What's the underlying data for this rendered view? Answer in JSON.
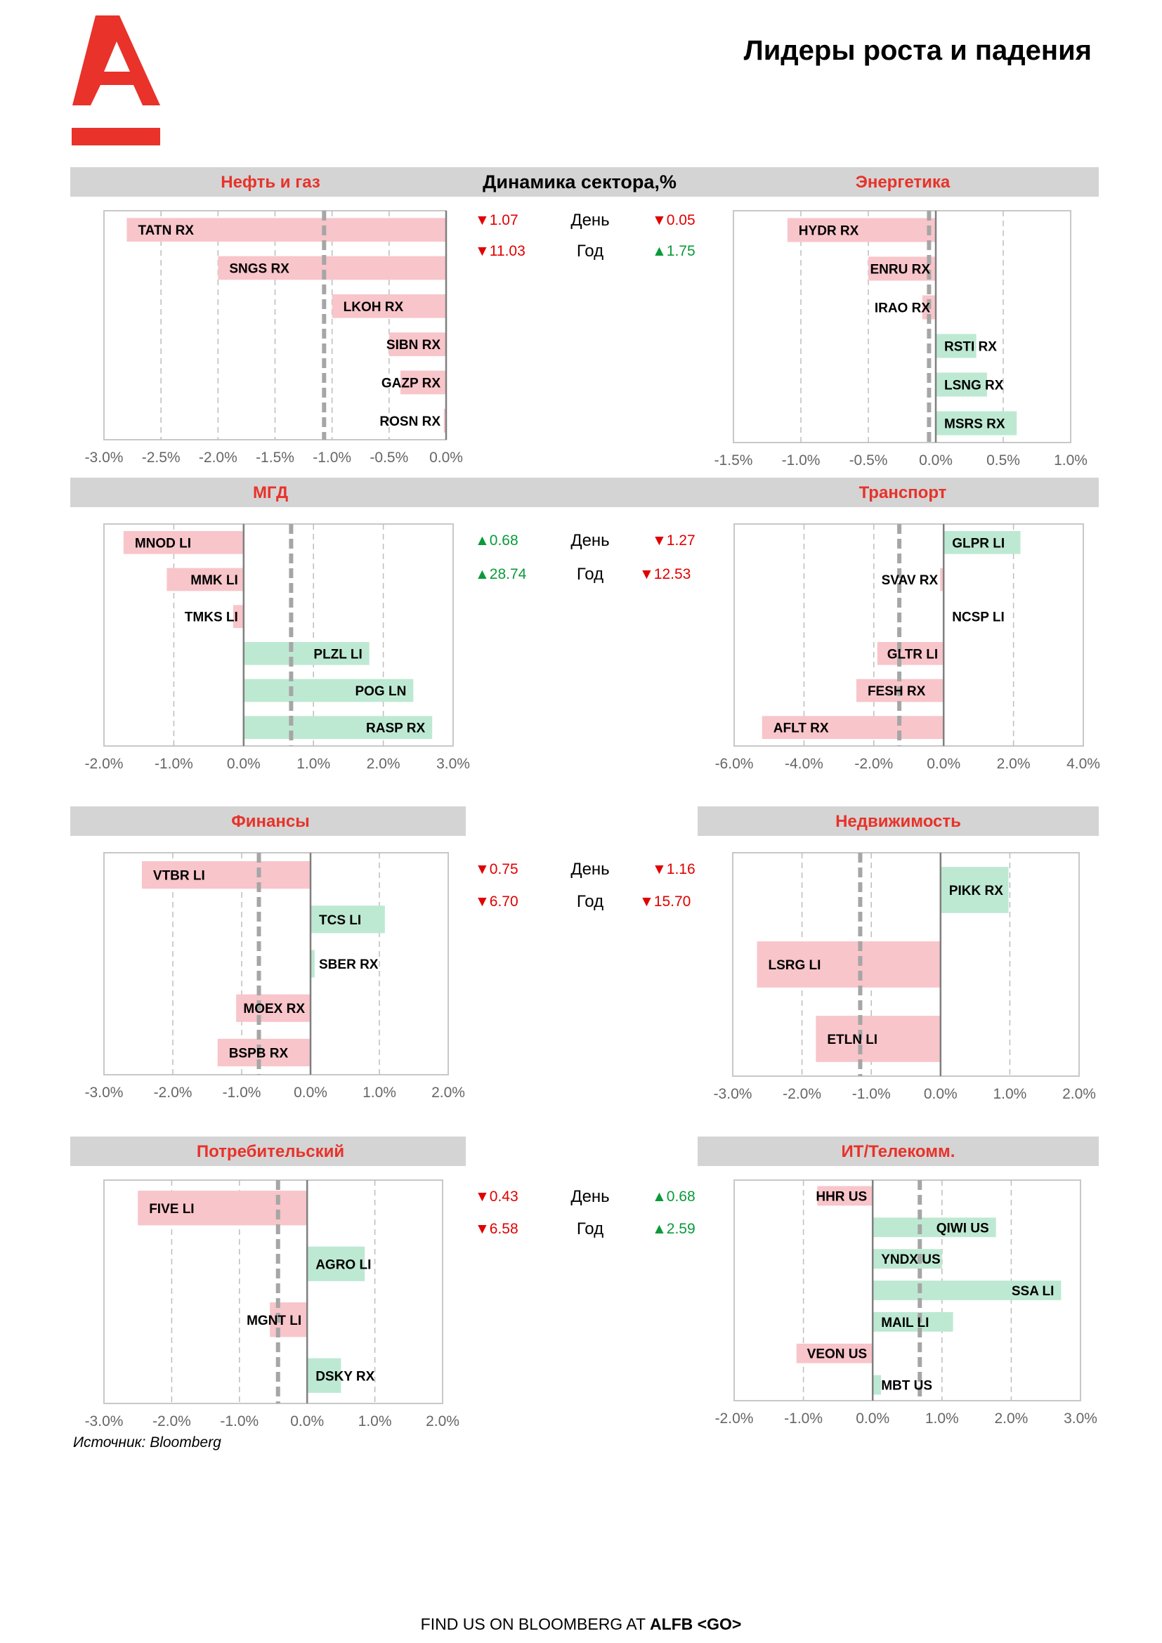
{
  "page_title": "Лидеры роста и падения",
  "center_title": "Динамика сектора,%",
  "source": "Источник: Bloomberg",
  "footer": {
    "text": "FIND US ON BLOOMBERG AT ",
    "bold": "ALFB <GO>"
  },
  "labels": {
    "day": "День",
    "year": "Год"
  },
  "colors": {
    "brand_red": "#e8322a",
    "neg_bar": "#f8c5ca",
    "pos_bar": "#bde9d3",
    "down": "#e00000",
    "up": "#0a9a3a",
    "header_bg": "#d4d4d4"
  },
  "stats": [
    {
      "left": {
        "day": "▼1.07",
        "year": "▼11.03",
        "day_dir": "down",
        "year_dir": "down"
      },
      "right": {
        "day": "▼0.05",
        "year": "▲1.75",
        "day_dir": "down",
        "year_dir": "up"
      }
    },
    {
      "left": {
        "day": "▲0.68",
        "year": "▲28.74",
        "day_dir": "up",
        "year_dir": "up"
      },
      "right": {
        "day": "▼1.27",
        "year": "▼12.53",
        "day_dir": "down",
        "year_dir": "down"
      }
    },
    {
      "left": {
        "day": "▼0.75",
        "year": "▼6.70",
        "day_dir": "down",
        "year_dir": "down"
      },
      "right": {
        "day": "▼1.16",
        "year": "▼15.70",
        "day_dir": "down",
        "year_dir": "down"
      }
    },
    {
      "left": {
        "day": "▼0.43",
        "year": "▼6.58",
        "day_dir": "down",
        "year_dir": "down"
      },
      "right": {
        "day": "▲0.68",
        "year": "▲2.59",
        "day_dir": "up",
        "year_dir": "up"
      }
    }
  ],
  "chart_data": [
    {
      "type": "bar",
      "title": "Нефть и газ",
      "orientation": "horizontal",
      "categories": [
        "TATN RX",
        "SNGS RX",
        "LKOH RX",
        "SIBN RX",
        "GAZP RX",
        "ROSN RX"
      ],
      "values": [
        -2.8,
        -2.0,
        -1.0,
        -0.5,
        -0.4,
        -0.02
      ],
      "xlim": [
        -3.0,
        0.0
      ],
      "ticks": [
        -3.0,
        -2.5,
        -2.0,
        -1.5,
        -1.0,
        -0.5,
        0.0
      ],
      "tick_labels": [
        "-3.0%",
        "-2.5%",
        "-2.0%",
        "-1.5%",
        "-1.0%",
        "-0.5%",
        "0.0%"
      ],
      "sector_change": -1.07,
      "grid": true
    },
    {
      "type": "bar",
      "title": "Энергетика",
      "orientation": "horizontal",
      "categories": [
        "HYDR RX",
        "ENRU RX",
        "IRAO RX",
        "RSTI RX",
        "LSNG RX",
        "MSRS RX"
      ],
      "values": [
        -1.1,
        -0.5,
        -0.1,
        0.3,
        0.38,
        0.6
      ],
      "xlim": [
        -1.5,
        1.0
      ],
      "ticks": [
        -1.5,
        -1.0,
        -0.5,
        0.0,
        0.5,
        1.0
      ],
      "tick_labels": [
        "-1.5%",
        "-1.0%",
        "-0.5%",
        "0.0%",
        "0.5%",
        "1.0%"
      ],
      "sector_change": -0.05,
      "grid": true
    },
    {
      "type": "bar",
      "title": "МГД",
      "orientation": "horizontal",
      "categories": [
        "MNOD LI",
        "MMK LI",
        "TMKS LI",
        "PLZL LI",
        "POG LN",
        "RASP RX"
      ],
      "values": [
        -1.72,
        -1.1,
        -0.15,
        1.8,
        2.43,
        2.7
      ],
      "xlim": [
        -2.0,
        3.0
      ],
      "ticks": [
        -2.0,
        -1.0,
        0.0,
        1.0,
        2.0,
        3.0
      ],
      "tick_labels": [
        "-2.0%",
        "-1.0%",
        "0.0%",
        "1.0%",
        "2.0%",
        "3.0%"
      ],
      "sector_change": 0.68,
      "grid": true
    },
    {
      "type": "bar",
      "title": "Транспорт",
      "orientation": "horizontal",
      "categories": [
        "GLPR LI",
        "SVAV RX",
        "NCSP LI",
        "GLTR LI",
        "FESH RX",
        "AFLT RX"
      ],
      "values": [
        2.2,
        -0.1,
        0.0,
        -1.9,
        -2.5,
        -5.2
      ],
      "xlim": [
        -6.0,
        4.0
      ],
      "ticks": [
        -6.0,
        -4.0,
        -2.0,
        0.0,
        2.0,
        4.0
      ],
      "tick_labels": [
        "-6.0%",
        "-4.0%",
        "-2.0%",
        "0.0%",
        "2.0%",
        "4.0%"
      ],
      "sector_change": -1.27,
      "grid": true
    },
    {
      "type": "bar",
      "title": "Финансы",
      "orientation": "horizontal",
      "categories": [
        "VTBR LI",
        "TCS LI",
        "SBER RX",
        "MOEX RX",
        "BSPB RX"
      ],
      "values": [
        -2.45,
        1.08,
        0.06,
        -1.08,
        -1.35
      ],
      "xlim": [
        -3.0,
        2.0
      ],
      "ticks": [
        -3.0,
        -2.0,
        -1.0,
        0.0,
        1.0,
        2.0
      ],
      "tick_labels": [
        "-3.0%",
        "-2.0%",
        "-1.0%",
        "0.0%",
        "1.0%",
        "2.0%"
      ],
      "sector_change": -0.75,
      "grid": true
    },
    {
      "type": "bar",
      "title": "Недвижимость",
      "orientation": "horizontal",
      "categories": [
        "PIKK RX",
        "LSRG LI",
        "ETLN LI"
      ],
      "values": [
        0.98,
        -2.65,
        -1.8
      ],
      "xlim": [
        -3.0,
        2.0
      ],
      "ticks": [
        -3.0,
        -2.0,
        -1.0,
        0.0,
        1.0,
        2.0
      ],
      "tick_labels": [
        "-3.0%",
        "-2.0%",
        "-1.0%",
        "0.0%",
        "1.0%",
        "2.0%"
      ],
      "sector_change": -1.16,
      "grid": true
    },
    {
      "type": "bar",
      "title": "Потребительский",
      "orientation": "horizontal",
      "categories": [
        "FIVE LI",
        "AGRO LI",
        "MGNT LI",
        "DSKY RX"
      ],
      "values": [
        -2.5,
        0.85,
        -0.55,
        0.5
      ],
      "xlim": [
        -3.0,
        2.0
      ],
      "ticks": [
        -3.0,
        -2.0,
        -1.0,
        0.0,
        1.0,
        2.0
      ],
      "tick_labels": [
        "-3.0%",
        "-2.0%",
        "-1.0%",
        "0.0%",
        "1.0%",
        "2.0%"
      ],
      "sector_change": -0.43,
      "grid": true
    },
    {
      "type": "bar",
      "title": "ИТ/Телекомм.",
      "orientation": "horizontal",
      "categories": [
        "HHR US",
        "QIWI US",
        "YNDX US",
        "SSA LI",
        "MAIL LI",
        "VEON US",
        "MBT US"
      ],
      "values": [
        -0.8,
        1.78,
        1.0,
        2.72,
        1.16,
        -1.1,
        0.12
      ],
      "xlim": [
        -2.0,
        3.0
      ],
      "ticks": [
        -2.0,
        -1.0,
        0.0,
        1.0,
        2.0,
        3.0
      ],
      "tick_labels": [
        "-2.0%",
        "-1.0%",
        "0.0%",
        "1.0%",
        "2.0%",
        "3.0%"
      ],
      "sector_change": 0.68,
      "grid": true
    }
  ]
}
